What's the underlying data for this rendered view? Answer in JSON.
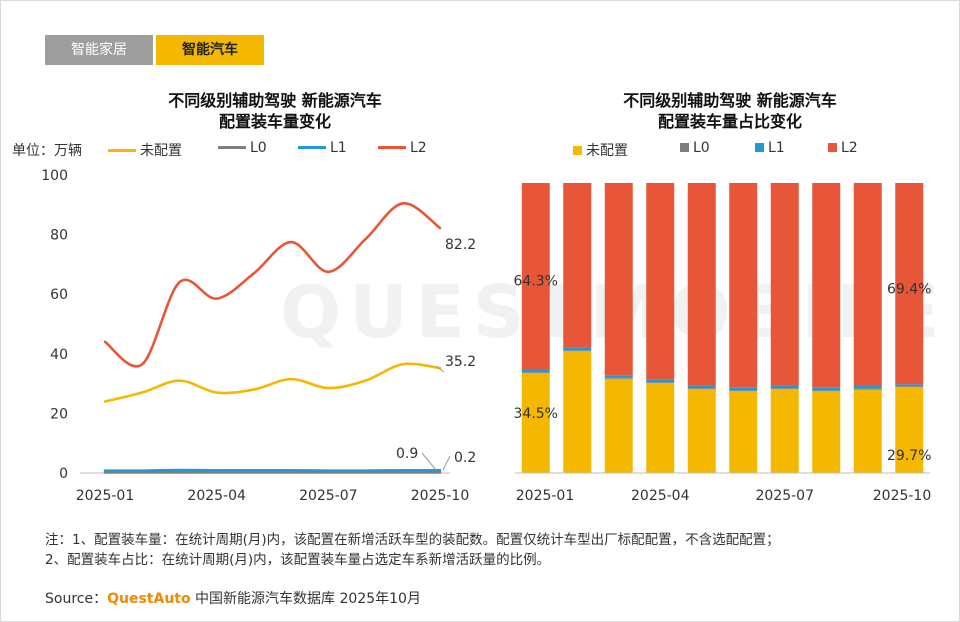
{
  "tabs": [
    {
      "label": "智能家居",
      "active": false
    },
    {
      "label": "智能汽车",
      "active": true
    }
  ],
  "watermark": "QUESTMOBILE",
  "left_chart": {
    "title_line1": "不同级别辅助驾驶 新能源汽车",
    "title_line2": "配置装车量变化",
    "unit": "单位：万辆"
  },
  "right_chart": {
    "title_line1": "不同级别辅助驾驶 新能源汽车",
    "title_line2": "配置装车量占比变化"
  },
  "colors": {
    "未配置": "#f5b800",
    "L0": "#7f7f7f",
    "L1": "#1f9ad6",
    "L2": "#e8563a"
  },
  "chart_data": [
    {
      "type": "line",
      "x": [
        "2025-01",
        "2025-02",
        "2025-03",
        "2025-04",
        "2025-05",
        "2025-06",
        "2025-07",
        "2025-08",
        "2025-09",
        "2025-10"
      ],
      "xticks": [
        "2025-01",
        "2025-04",
        "2025-07",
        "2025-10"
      ],
      "ylim": [
        0,
        100
      ],
      "yticks": [
        0,
        20,
        40,
        60,
        80,
        100
      ],
      "series": [
        {
          "name": "未配置",
          "values": [
            24,
            27,
            31,
            27,
            28,
            31.5,
            28.5,
            31,
            36.5,
            35.2
          ]
        },
        {
          "name": "L0",
          "values": [
            0.2,
            0.2,
            0.2,
            0.2,
            0.2,
            0.2,
            0.2,
            0.2,
            0.2,
            0.2
          ]
        },
        {
          "name": "L1",
          "values": [
            0.8,
            0.8,
            1,
            0.9,
            0.9,
            0.9,
            0.8,
            0.8,
            0.9,
            0.9
          ]
        },
        {
          "name": "L2",
          "values": [
            44,
            36.5,
            64,
            58.5,
            67,
            77.5,
            67.5,
            78.5,
            90.5,
            82.2
          ]
        }
      ],
      "labels": [
        {
          "series": "L2",
          "index": 9,
          "text": "82.2"
        },
        {
          "series": "未配置",
          "index": 9,
          "text": "35.2"
        },
        {
          "series": "L1",
          "index": 9,
          "text": "0.9"
        },
        {
          "series": "L0",
          "index": 9,
          "text": "0.2"
        }
      ]
    },
    {
      "type": "bar",
      "stacked": true,
      "categories": [
        "2025-01",
        "2025-02",
        "2025-03",
        "2025-04",
        "2025-05",
        "2025-06",
        "2025-07",
        "2025-08",
        "2025-09",
        "2025-10"
      ],
      "xticks": [
        "2025-01",
        "2025-04",
        "2025-07",
        "2025-10"
      ],
      "ylim": [
        0,
        100
      ],
      "series": [
        {
          "name": "未配置",
          "values": [
            34.5,
            42,
            32.5,
            31,
            29,
            28.2,
            29,
            28.2,
            28.8,
            29.7
          ]
        },
        {
          "name": "L0",
          "values": [
            0.3,
            0.3,
            0.3,
            0.3,
            0.3,
            0.3,
            0.3,
            0.3,
            0.3,
            0.3
          ]
        },
        {
          "name": "L1",
          "values": [
            0.9,
            1,
            0.9,
            0.9,
            0.9,
            0.9,
            0.9,
            0.9,
            0.9,
            0.6
          ]
        },
        {
          "name": "L2",
          "values": [
            64.3,
            56.7,
            66.3,
            67.8,
            69.8,
            70.6,
            69.8,
            70.6,
            70,
            69.4
          ]
        }
      ],
      "labels": [
        {
          "series": "L2",
          "index": 0,
          "text": "64.3%"
        },
        {
          "series": "未配置",
          "index": 0,
          "text": "34.5%"
        },
        {
          "series": "L2",
          "index": 9,
          "text": "69.4%"
        },
        {
          "series": "未配置",
          "index": 9,
          "text": "29.7%"
        }
      ]
    }
  ],
  "notes": [
    "注：1、配置装车量：在统计周期(月)内，该配置在新增活跃车型的装配数。配置仅统计车型出厂标配配置，不含选配配置；",
    "2、配置装车占比：在统计周期(月)内，该配置装车量占选定车系新增活跃量的比例。"
  ],
  "source": {
    "prefix": "Source：",
    "brand": "QuestAuto",
    "suffix": " 中国新能源汽车数据库 2025年10月"
  }
}
